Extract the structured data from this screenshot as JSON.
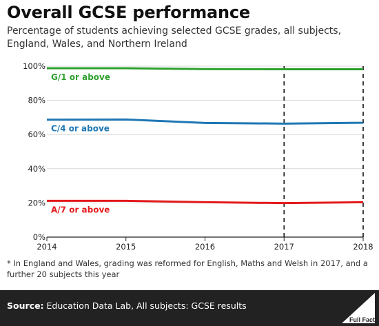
{
  "header": {
    "title": "Overall GCSE performance",
    "subtitle": "Percentage of students achieving selected GCSE grades, all subjects, England, Wales, and Northern Ireland"
  },
  "footnote": "* In England and Wales, grading was reformed for English, Maths and Welsh in 2017, and a further 20 subjects this year",
  "footer": {
    "source_label": "Source:",
    "source_text": "Education Data Lab, All subjects: GCSE results",
    "logo_text": "Full Fact"
  },
  "chart_data": {
    "type": "line",
    "x": [
      2014,
      2015,
      2016,
      2017,
      2018
    ],
    "x_tick_labels": [
      "2014",
      "2015",
      "2016",
      "2017",
      "2018"
    ],
    "y_tick_labels": [
      "0%",
      "20%",
      "40%",
      "60%",
      "80%",
      "100%"
    ],
    "y_ticks": [
      0,
      20,
      40,
      60,
      80,
      100
    ],
    "ylim": [
      0,
      100
    ],
    "xlim": [
      2014,
      2018
    ],
    "grid": true,
    "reference_lines_x": [
      2017,
      2018
    ],
    "series": [
      {
        "name": "G/1 or above",
        "color": "#2ca02c",
        "values": [
          98.8,
          98.8,
          98.3,
          98.2,
          98.2
        ]
      },
      {
        "name": "C/4 or above",
        "color": "#1f77b4",
        "values": [
          68.7,
          68.8,
          66.8,
          66.4,
          66.9
        ]
      },
      {
        "name": "A/7 or above",
        "color": "#e31a1c",
        "values": [
          21.2,
          21.2,
          20.4,
          19.9,
          20.4
        ]
      }
    ]
  }
}
